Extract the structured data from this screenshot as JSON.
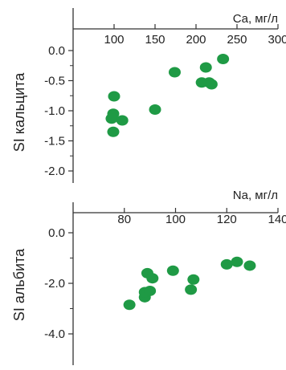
{
  "chart_data": [
    {
      "type": "scatter",
      "xlabel": "Ca, мг/л",
      "ylabel": "SI кальцита",
      "xlim": [
        50,
        300
      ],
      "ylim": [
        -2.0,
        0.0
      ],
      "xticks": [
        "100",
        "150",
        "200",
        "250",
        "300"
      ],
      "yticks": [
        "0.0",
        "-0.5",
        "-1.0",
        "-1.5",
        "-2.0"
      ],
      "x_axis_position": "top",
      "marker_color": "#1f9a45",
      "points": [
        {
          "x": 100,
          "y": -0.76
        },
        {
          "x": 99,
          "y": -1.05
        },
        {
          "x": 97,
          "y": -1.13
        },
        {
          "x": 110,
          "y": -1.16
        },
        {
          "x": 150,
          "y": -0.98
        },
        {
          "x": 99,
          "y": -1.35
        },
        {
          "x": 174,
          "y": -0.36
        },
        {
          "x": 207,
          "y": -0.53
        },
        {
          "x": 212,
          "y": -0.28
        },
        {
          "x": 216,
          "y": -0.53
        },
        {
          "x": 219,
          "y": -0.56
        },
        {
          "x": 233,
          "y": -0.14
        }
      ]
    },
    {
      "type": "scatter",
      "xlabel": "Na, мг/л",
      "ylabel": "SI альбита",
      "xlim": [
        60,
        140
      ],
      "ylim": [
        -5.0,
        1.0
      ],
      "xticks": [
        "80",
        "100",
        "120",
        "140"
      ],
      "yticks": [
        "0.0",
        "-2.0",
        "-4.0"
      ],
      "x_axis_position": "top",
      "marker_color": "#1f9a45",
      "points": [
        {
          "x": 82,
          "y": -2.85
        },
        {
          "x": 88,
          "y": -2.55
        },
        {
          "x": 88,
          "y": -2.35
        },
        {
          "x": 90,
          "y": -2.3
        },
        {
          "x": 89,
          "y": -1.6
        },
        {
          "x": 91,
          "y": -1.8
        },
        {
          "x": 99,
          "y": -1.5
        },
        {
          "x": 106,
          "y": -2.25
        },
        {
          "x": 107,
          "y": -1.85
        },
        {
          "x": 120,
          "y": -1.25
        },
        {
          "x": 124,
          "y": -1.15
        },
        {
          "x": 129,
          "y": -1.3
        }
      ]
    }
  ]
}
